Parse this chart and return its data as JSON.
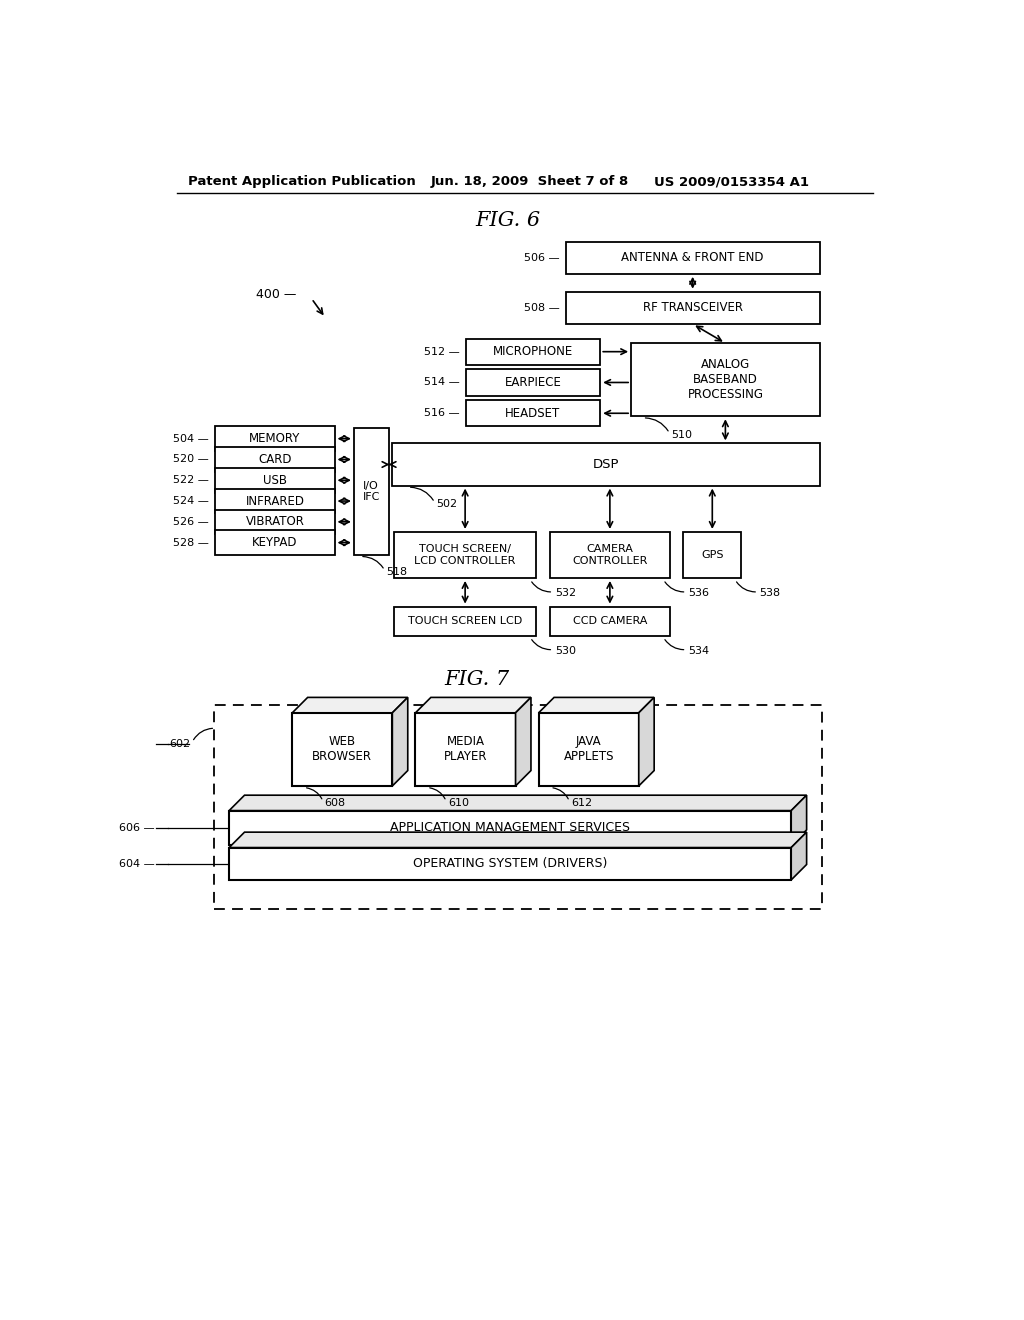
{
  "header_left": "Patent Application Publication",
  "header_mid": "Jun. 18, 2009  Sheet 7 of 8",
  "header_right": "US 2009/0153354 A1",
  "fig6_title": "FIG. 6",
  "fig7_title": "FIG. 7",
  "bg_color": "#ffffff"
}
